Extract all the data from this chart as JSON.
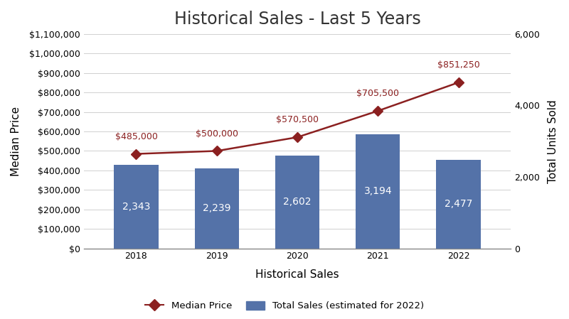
{
  "title": "Historical Sales - Last 5 Years",
  "xlabel": "Historical Sales",
  "ylabel_left": "Median Price",
  "ylabel_right": "Total Units Sold",
  "years": [
    2018,
    2019,
    2020,
    2021,
    2022
  ],
  "median_prices": [
    485000,
    500000,
    570500,
    705500,
    851250
  ],
  "total_sales": [
    2343,
    2239,
    2602,
    3194,
    2477
  ],
  "bar_color": "#5472a8",
  "line_color": "#8b2020",
  "line_marker": "D",
  "line_marker_color": "#8b2020",
  "price_labels": [
    "$485,000",
    "$500,000",
    "$570,500",
    "$705,500",
    "$851,250"
  ],
  "sales_labels": [
    "2,343",
    "2,239",
    "2,602",
    "3,194",
    "2,477"
  ],
  "ylim_left": [
    0,
    1100000
  ],
  "ylim_right": [
    0,
    6000
  ],
  "yticks_left": [
    0,
    100000,
    200000,
    300000,
    400000,
    500000,
    600000,
    700000,
    800000,
    900000,
    1000000,
    1100000
  ],
  "yticks_right": [
    0,
    2000,
    4000,
    6000
  ],
  "ytick_labels_left": [
    "$0",
    "$100,000",
    "$200,000",
    "$300,000",
    "$400,000",
    "$500,000",
    "$600,000",
    "$700,000",
    "$800,000",
    "$900,000",
    "$1,000,000",
    "$1,100,000"
  ],
  "ytick_labels_right": [
    "0",
    "2,000",
    "4,000",
    "6,000"
  ],
  "background_color": "#ffffff",
  "legend_label_line": "Median Price",
  "legend_label_bar": "Total Sales (estimated for 2022)",
  "bar_width": 0.55,
  "grid_color": "#d0d0d0",
  "title_fontsize": 17,
  "axis_label_fontsize": 11,
  "tick_fontsize": 9,
  "annotation_fontsize": 9,
  "bar_label_fontsize": 10
}
